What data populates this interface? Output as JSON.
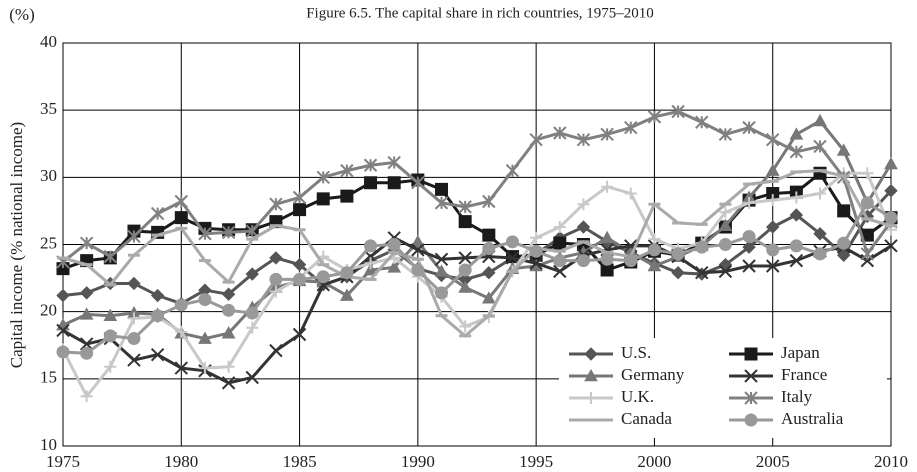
{
  "chart_data": {
    "type": "line",
    "title": "Figure 6.5. The capital share in rich countries, 1975–2010",
    "y_unit": "(%)",
    "y_label": "Capital income (% national income)",
    "x": [
      1975,
      1976,
      1977,
      1978,
      1979,
      1980,
      1981,
      1982,
      1983,
      1984,
      1985,
      1986,
      1987,
      1988,
      1989,
      1990,
      1991,
      1992,
      1993,
      1994,
      1995,
      1996,
      1997,
      1998,
      1999,
      2000,
      2001,
      2002,
      2003,
      2004,
      2005,
      2006,
      2007,
      2008,
      2009,
      2010
    ],
    "xlim": [
      1975,
      2010
    ],
    "xticks": [
      1975,
      1980,
      1985,
      1990,
      1995,
      2000,
      2005,
      2010
    ],
    "ylim": [
      10,
      40
    ],
    "yticks": [
      10,
      15,
      20,
      25,
      30,
      35,
      40
    ],
    "grid": true,
    "legend": "lower right",
    "series": [
      {
        "name": "U.S.",
        "color": "#555555",
        "marker": "diamond",
        "values": [
          21.2,
          21.4,
          22.1,
          22.1,
          21.2,
          20.6,
          21.6,
          21.3,
          22.8,
          24.0,
          23.5,
          22.0,
          22.6,
          23.8,
          24.6,
          23.2,
          22.7,
          22.4,
          22.9,
          24.0,
          24.3,
          25.5,
          26.3,
          25.2,
          24.4,
          23.6,
          22.9,
          22.8,
          23.5,
          24.8,
          26.3,
          27.2,
          25.8,
          24.2,
          27.1,
          29.0
        ]
      },
      {
        "name": "Japan",
        "color": "#1a1a1a",
        "marker": "square",
        "values": [
          23.2,
          23.8,
          24.0,
          26.0,
          25.9,
          27.0,
          26.2,
          26.1,
          26.1,
          26.7,
          27.6,
          28.4,
          28.6,
          29.6,
          29.6,
          29.8,
          29.1,
          26.7,
          25.7,
          24.1,
          24.2,
          25.1,
          25.0,
          23.1,
          23.7,
          24.5,
          24.2,
          25.1,
          26.3,
          28.3,
          28.8,
          28.9,
          30.3,
          27.5,
          25.7,
          27.0
        ]
      },
      {
        "name": "Germany",
        "color": "#777777",
        "marker": "triangle",
        "values": [
          19.0,
          19.8,
          19.7,
          19.9,
          19.8,
          18.4,
          18.0,
          18.4,
          20.3,
          21.8,
          22.3,
          22.2,
          21.2,
          23.1,
          23.3,
          25.2,
          23.0,
          21.8,
          21.0,
          23.2,
          23.4,
          24.0,
          24.4,
          25.5,
          24.4,
          23.4,
          24.1,
          24.9,
          26.4,
          28.5,
          30.5,
          33.2,
          34.2,
          32.0,
          28.1,
          31.0
        ]
      },
      {
        "name": "France",
        "color": "#333333",
        "marker": "x",
        "values": [
          18.6,
          17.6,
          18.0,
          16.4,
          16.8,
          15.8,
          15.6,
          14.7,
          15.1,
          17.1,
          18.3,
          22.0,
          22.6,
          24.1,
          25.5,
          24.6,
          23.9,
          24.0,
          24.1,
          24.0,
          23.6,
          23.0,
          24.2,
          24.6,
          24.9,
          24.9,
          24.1,
          22.9,
          23.0,
          23.4,
          23.4,
          23.8,
          24.5,
          24.8,
          23.8,
          24.9
        ]
      },
      {
        "name": "U.K.",
        "color": "#c8c8c8",
        "marker": "plus",
        "values": [
          17.2,
          13.7,
          15.9,
          19.5,
          19.6,
          18.5,
          15.8,
          15.9,
          18.8,
          21.5,
          22.5,
          24.1,
          23.1,
          23.6,
          24.0,
          22.6,
          21.1,
          18.9,
          19.6,
          23.0,
          25.5,
          26.3,
          28.0,
          29.3,
          28.8,
          25.4,
          24.7,
          25.1,
          27.4,
          28.1,
          28.3,
          28.5,
          28.8,
          30.3,
          30.3,
          26.1
        ]
      },
      {
        "name": "Italy",
        "color": "#808080",
        "marker": "asterisk",
        "values": [
          23.7,
          25.1,
          24.1,
          25.6,
          27.3,
          28.2,
          25.8,
          25.9,
          26.0,
          28.0,
          28.5,
          30.0,
          30.5,
          30.9,
          31.1,
          29.6,
          28.1,
          27.8,
          28.2,
          30.5,
          32.8,
          33.3,
          32.8,
          33.2,
          33.7,
          34.5,
          34.9,
          34.1,
          33.2,
          33.7,
          32.8,
          31.9,
          32.3,
          30.0,
          24.3,
          26.7
        ]
      },
      {
        "name": "Canada",
        "color": "#aaaaaa",
        "marker": "dash",
        "values": [
          24.0,
          23.5,
          22.0,
          24.2,
          25.7,
          26.2,
          23.8,
          22.2,
          25.4,
          26.4,
          26.1,
          23.5,
          22.6,
          22.4,
          24.4,
          23.9,
          19.7,
          18.2,
          19.7,
          23.0,
          24.7,
          24.5,
          25.2,
          24.4,
          24.1,
          28.0,
          26.6,
          26.5,
          28.0,
          29.5,
          29.7,
          30.4,
          30.5,
          30.1,
          26.9,
          26.4
        ]
      },
      {
        "name": "Australia",
        "color": "#999999",
        "marker": "circle",
        "values": [
          17.0,
          16.9,
          18.2,
          18.0,
          19.7,
          20.5,
          20.9,
          20.1,
          19.9,
          22.4,
          22.4,
          22.6,
          22.9,
          24.9,
          25.0,
          23.1,
          21.4,
          23.1,
          24.7,
          25.2,
          24.5,
          23.8,
          23.8,
          23.9,
          23.8,
          24.6,
          24.3,
          24.8,
          25.0,
          25.6,
          24.6,
          24.9,
          24.3,
          25.1,
          28.1,
          27.0
        ]
      }
    ]
  }
}
